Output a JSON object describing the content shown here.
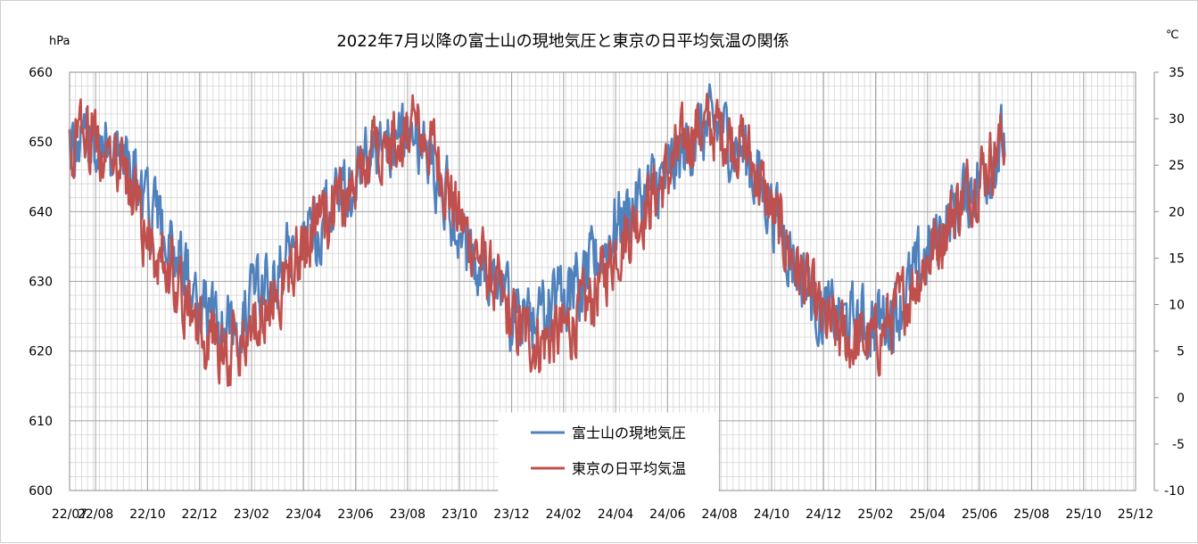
{
  "chart_data": {
    "type": "line",
    "title": "2022年7月以降の富士山の現地気圧と東京の日平均気温の関係",
    "y_left_unit": "hPa",
    "y_right_unit": "℃",
    "x_labels": [
      "22/07",
      "22/08",
      "22/10",
      "22/12",
      "23/02",
      "23/04",
      "23/06",
      "23/08",
      "23/10",
      "23/12",
      "24/02",
      "24/04",
      "24/06",
      "24/08",
      "24/10",
      "24/12",
      "25/02",
      "25/04",
      "25/06",
      "25/08",
      "25/10",
      "25/12"
    ],
    "x_range": [
      "2022-07",
      "2025-12"
    ],
    "y_left_ticks": [
      600,
      610,
      620,
      630,
      640,
      650,
      660
    ],
    "y_right_ticks": [
      -10,
      -5,
      0,
      5,
      10,
      15,
      20,
      25,
      30,
      35
    ],
    "y_left_lim": [
      600,
      660
    ],
    "y_right_lim": [
      -10,
      35
    ],
    "grid": true,
    "legend_position": "bottom-center",
    "series": [
      {
        "name": "富士山の現地気圧",
        "axis": "left",
        "color": "#4f81bd",
        "anchor_dates": [
          "2022-07-01",
          "2022-08-01",
          "2022-09-01",
          "2022-10-01",
          "2022-11-01",
          "2022-12-01",
          "2023-01-01",
          "2023-02-01",
          "2023-03-01",
          "2023-04-01",
          "2023-05-01",
          "2023-06-01",
          "2023-07-01",
          "2023-08-01",
          "2023-09-01",
          "2023-10-01",
          "2023-11-01",
          "2023-12-01",
          "2024-01-01",
          "2024-02-01",
          "2024-03-01",
          "2024-04-01",
          "2024-05-01",
          "2024-06-01",
          "2024-07-01",
          "2024-08-01",
          "2024-09-01",
          "2024-10-01",
          "2024-11-01",
          "2024-12-01",
          "2025-01-01",
          "2025-02-01",
          "2025-03-01",
          "2025-04-01",
          "2025-05-01",
          "2025-06-01",
          "2025-06-30"
        ],
        "anchor_values": [
          650,
          650,
          648,
          640,
          635,
          626,
          624,
          626,
          632,
          637,
          640,
          645,
          650,
          651,
          647,
          637,
          631,
          625,
          624,
          628,
          631,
          638,
          642,
          645,
          651,
          652,
          648,
          641,
          632,
          625,
          624,
          624,
          627,
          634,
          640,
          645,
          650
        ]
      },
      {
        "name": "東京の日平均気温",
        "axis": "right",
        "color": "#c0504d",
        "anchor_dates": [
          "2022-07-01",
          "2022-08-01",
          "2022-09-01",
          "2022-10-01",
          "2022-11-01",
          "2022-12-01",
          "2023-01-01",
          "2023-02-01",
          "2023-03-01",
          "2023-04-01",
          "2023-05-01",
          "2023-06-01",
          "2023-07-01",
          "2023-08-01",
          "2023-09-01",
          "2023-10-01",
          "2023-11-01",
          "2023-12-01",
          "2024-01-01",
          "2024-02-01",
          "2024-03-01",
          "2024-04-01",
          "2024-05-01",
          "2024-06-01",
          "2024-07-01",
          "2024-08-01",
          "2024-09-01",
          "2024-10-01",
          "2024-11-01",
          "2024-12-01",
          "2025-01-01",
          "2025-02-01",
          "2025-03-01",
          "2025-04-01",
          "2025-05-01",
          "2025-06-01",
          "2025-06-30"
        ],
        "anchor_values": [
          27,
          28,
          25,
          17,
          14,
          7,
          5,
          7,
          12,
          16,
          20,
          23,
          28,
          29,
          27,
          19,
          14,
          8,
          6,
          7,
          10,
          16,
          20,
          24,
          29,
          29,
          27,
          20,
          14,
          8,
          6,
          6,
          10,
          15,
          20,
          24,
          28
        ]
      }
    ]
  }
}
